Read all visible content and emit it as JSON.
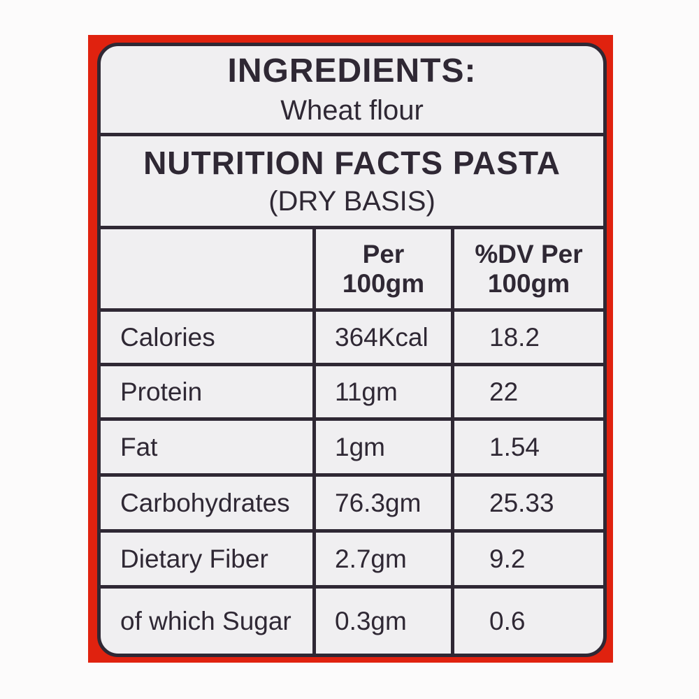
{
  "label": {
    "ingredients": {
      "heading": "INGREDIENTS:",
      "value": "Wheat flour"
    },
    "nutrition": {
      "title": "NUTRITION FACTS PASTA",
      "subtitle": "(DRY BASIS)"
    },
    "table": {
      "headers": {
        "item": "",
        "per": [
          "Per",
          "100gm"
        ],
        "dv": [
          "%DV Per",
          "100gm"
        ]
      },
      "rows": [
        {
          "name": "Calories",
          "per": "364Kcal",
          "dv": "18.2"
        },
        {
          "name": "Protein",
          "per": "11gm",
          "dv": "22"
        },
        {
          "name": "Fat",
          "per": "1gm",
          "dv": "1.54"
        },
        {
          "name": "Carbohydrates",
          "per": "76.3gm",
          "dv": "25.33"
        },
        {
          "name": "Dietary Fiber",
          "per": "2.7gm",
          "dv": "9.2"
        },
        {
          "name": "of which Sugar",
          "per": "0.3gm",
          "dv": "0.6"
        }
      ]
    },
    "colors": {
      "accent_red": "#e0220f",
      "label_background": "#f0eff1",
      "ink": "#2f2834",
      "page_background": "#fcfbfb"
    }
  }
}
